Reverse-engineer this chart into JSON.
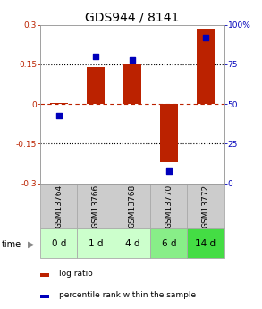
{
  "title": "GDS944 / 8141",
  "samples": [
    "GSM13764",
    "GSM13766",
    "GSM13768",
    "GSM13770",
    "GSM13772"
  ],
  "time_labels": [
    "0 d",
    "1 d",
    "4 d",
    "6 d",
    "14 d"
  ],
  "log_ratio": [
    0.005,
    0.14,
    0.15,
    -0.22,
    0.285
  ],
  "percentile": [
    43,
    80,
    78,
    8,
    92
  ],
  "bar_color": "#bb2200",
  "dot_color": "#0000bb",
  "ylim_left": [
    -0.3,
    0.3
  ],
  "ylim_right": [
    0,
    100
  ],
  "yticks_left": [
    -0.3,
    -0.15,
    0.0,
    0.15,
    0.3
  ],
  "yticks_right": [
    0,
    25,
    50,
    75,
    100
  ],
  "ytick_labels_left": [
    "-0.3",
    "-0.15",
    "0",
    "0.15",
    "0.3"
  ],
  "ytick_labels_right": [
    "0",
    "25",
    "50",
    "75",
    "100%"
  ],
  "hline_dotted": [
    0.15,
    -0.15
  ],
  "hline_dashed_red": 0.0,
  "bar_width": 0.5,
  "sample_bg_color": "#cccccc",
  "time_bg_colors": [
    "#ccffcc",
    "#ccffcc",
    "#ccffcc",
    "#88ee88",
    "#44dd44"
  ],
  "cell_edge_color": "#aaaaaa",
  "legend_items": [
    "log ratio",
    "percentile rank within the sample"
  ],
  "legend_colors": [
    "#bb2200",
    "#0000bb"
  ],
  "time_label_color": "#888888",
  "title_fontsize": 10,
  "tick_fontsize": 6.5,
  "table_sample_fontsize": 6.5,
  "table_time_fontsize": 7.5,
  "legend_fontsize": 6.5
}
